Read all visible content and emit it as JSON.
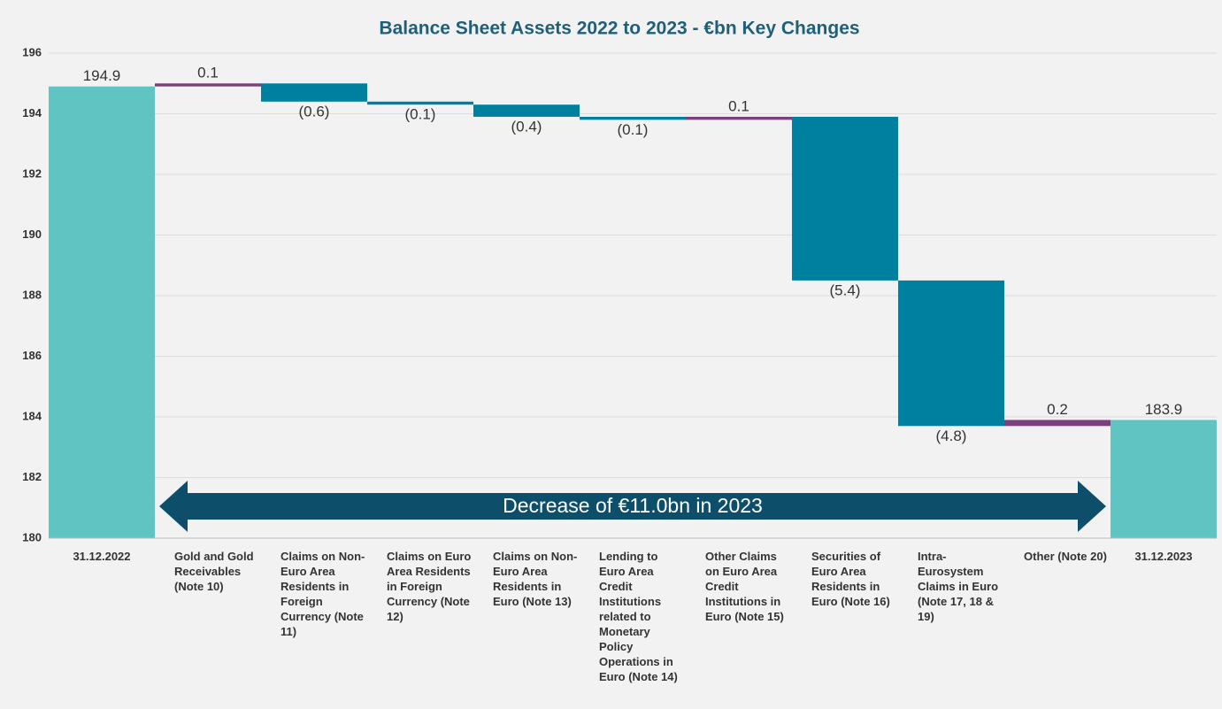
{
  "chart_data": {
    "type": "waterfall",
    "title": "Balance Sheet Assets 2022 to 2023 - €bn Key Changes",
    "annotation": "Decrease of €11.0bn in 2023",
    "categories": [
      "31.12.2022",
      "Gold and Gold Receivables (Note 10)",
      "Claims on Non-Euro Area Residents in Foreign Currency (Note 11)",
      "Claims on Euro Area Residents in Foreign Currency (Note 12)",
      "Claims on Non-Euro Area Residents in Euro (Note 13)",
      "Lending to Euro Area Credit Institutions related to Monetary Policy Operations in Euro (Note 14)",
      "Other Claims on Euro Area Credit Institutions in Euro (Note 15)",
      "Securities of Euro Area Residents in Euro (Note 16)",
      "Intra-Eurosystem Claims in Euro (Note 17, 18 & 19)",
      "Other (Note 20)",
      "31.12.2023"
    ],
    "values": [
      194.9,
      0.1,
      -0.6,
      -0.1,
      -0.4,
      -0.1,
      0.1,
      -5.4,
      -4.8,
      0.2,
      183.9
    ],
    "value_labels": [
      "194.9",
      "0.1",
      "(0.6)",
      "(0.1)",
      "(0.4)",
      "(0.1)",
      "0.1",
      "(5.4)",
      "(4.8)",
      "0.2",
      "183.9"
    ],
    "measures": [
      "total",
      "relative",
      "relative",
      "relative",
      "relative",
      "relative",
      "relative",
      "relative",
      "relative",
      "relative",
      "total"
    ],
    "colors": {
      "total": "#5fc4c2",
      "decrease": "#00809f",
      "increase": "#7b3f7e"
    },
    "ylim": [
      180,
      196
    ],
    "yticks": [
      180,
      182,
      184,
      186,
      188,
      190,
      192,
      194,
      196
    ],
    "grid": true
  }
}
